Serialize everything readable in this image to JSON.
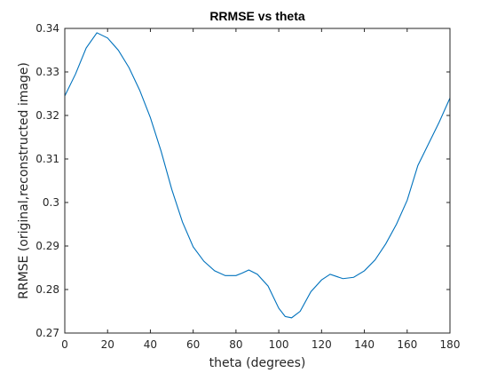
{
  "chart_data": {
    "type": "line",
    "title": "RRMSE vs theta",
    "xlabel": "theta (degrees)",
    "ylabel": "RRMSE (original,reconstructed image)",
    "xlim": [
      0,
      180
    ],
    "ylim": [
      0.27,
      0.34
    ],
    "grid": false,
    "legend": "none",
    "x_ticks": [
      0,
      20,
      40,
      60,
      80,
      100,
      120,
      140,
      160,
      180
    ],
    "x_tick_labels": [
      "0",
      "20",
      "40",
      "60",
      "80",
      "100",
      "120",
      "140",
      "160",
      "180"
    ],
    "y_ticks": [
      0.27,
      0.28,
      0.29,
      0.3,
      0.31,
      0.32,
      0.33,
      0.34
    ],
    "y_tick_labels": [
      "0.27",
      "0.28",
      "0.29",
      "0.3",
      "0.31",
      "0.32",
      "0.33",
      "0.34"
    ],
    "series": [
      {
        "color": "#0072bd",
        "x": [
          0,
          5,
          10,
          15,
          20,
          25,
          30,
          35,
          40,
          45,
          50,
          55,
          60,
          65,
          70,
          75,
          80,
          83,
          86,
          90,
          95,
          100,
          103,
          106,
          110,
          115,
          120,
          124,
          127,
          130,
          135,
          140,
          145,
          150,
          155,
          160,
          165,
          170,
          175,
          180
        ],
        "y": [
          0.3245,
          0.3295,
          0.3355,
          0.339,
          0.3378,
          0.335,
          0.331,
          0.3258,
          0.3195,
          0.3118,
          0.303,
          0.2955,
          0.2898,
          0.2865,
          0.2843,
          0.2832,
          0.2832,
          0.2838,
          0.2845,
          0.2835,
          0.2808,
          0.2757,
          0.2738,
          0.2735,
          0.275,
          0.2795,
          0.2822,
          0.2835,
          0.283,
          0.2825,
          0.2828,
          0.2843,
          0.2868,
          0.2905,
          0.295,
          0.3005,
          0.3085,
          0.3135,
          0.3185,
          0.324
        ]
      }
    ]
  }
}
